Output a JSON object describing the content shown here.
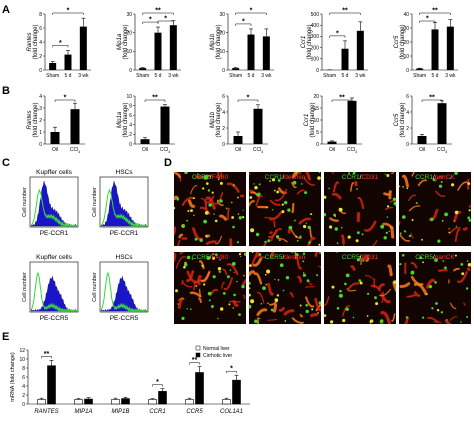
{
  "panel_labels": [
    "A",
    "B",
    "C",
    "D",
    "E"
  ],
  "panel_A": {
    "categories": [
      "Sham",
      "5 d",
      "3 wk"
    ],
    "ylabel_suffix": "(fold change)",
    "charts": [
      {
        "gene": "Rantes",
        "ylim": [
          0,
          8
        ],
        "yticks": [
          "0",
          "2",
          "4",
          "6",
          "8"
        ],
        "values": [
          1,
          2.2,
          6.2
        ],
        "errors": [
          0.2,
          0.6,
          1.2
        ],
        "sig": [
          "*",
          "*"
        ]
      },
      {
        "gene": "Mip1a",
        "ylim": [
          0,
          30
        ],
        "yticks": [
          "0",
          "10",
          "20",
          "30"
        ],
        "values": [
          1,
          20,
          24
        ],
        "errors": [
          0.3,
          3,
          2.5
        ],
        "sig": [
          "**",
          "*",
          "*"
        ]
      },
      {
        "gene": "Mip1b",
        "ylim": [
          0,
          30
        ],
        "yticks": [
          "0",
          "10",
          "20",
          "30"
        ],
        "values": [
          1,
          19,
          18
        ],
        "errors": [
          0.3,
          3,
          4
        ],
        "sig": [
          "*",
          "*"
        ]
      },
      {
        "gene": "Ccr1",
        "ylim": [
          0,
          500
        ],
        "yticks": [
          "0",
          "100",
          "200",
          "300",
          "400",
          "500"
        ],
        "values": [
          1,
          190,
          350
        ],
        "errors": [
          1,
          70,
          80
        ],
        "sig": [
          "**",
          "*"
        ]
      },
      {
        "gene": "Ccr5",
        "ylim": [
          0,
          40
        ],
        "yticks": [
          "0",
          "10",
          "20",
          "30",
          "40"
        ],
        "values": [
          1,
          29,
          31
        ],
        "errors": [
          0.3,
          5,
          5
        ],
        "sig": [
          "**",
          "*"
        ]
      }
    ]
  },
  "panel_B": {
    "categories": [
      "Oil",
      "CCl4"
    ],
    "ylabel_suffix": "(fold change)",
    "charts": [
      {
        "gene": "Rantes",
        "ylim": [
          0,
          4
        ],
        "yticks": [
          "0",
          "1",
          "2",
          "3",
          "4"
        ],
        "values": [
          1,
          2.9
        ],
        "errors": [
          0.4,
          0.5
        ],
        "sig": [
          "*"
        ]
      },
      {
        "gene": "Mip1a",
        "ylim": [
          0,
          10
        ],
        "yticks": [
          "0",
          "2",
          "4",
          "6",
          "8",
          "10"
        ],
        "values": [
          1,
          7.8
        ],
        "errors": [
          0.3,
          0.4
        ],
        "sig": [
          "**"
        ]
      },
      {
        "gene": "Mip1b",
        "ylim": [
          0,
          6
        ],
        "yticks": [
          "0",
          "2",
          "4",
          "6"
        ],
        "values": [
          1,
          4.4
        ],
        "errors": [
          0.5,
          0.5
        ],
        "sig": [
          "*"
        ]
      },
      {
        "gene": "Ccr1",
        "ylim": [
          0,
          20
        ],
        "yticks": [
          "0",
          "5",
          "10",
          "15",
          "20"
        ],
        "values": [
          1,
          18
        ],
        "errors": [
          0.3,
          1.2
        ],
        "sig": [
          "**"
        ]
      },
      {
        "gene": "Ccr5",
        "ylim": [
          0,
          6
        ],
        "yticks": [
          "0",
          "2",
          "4",
          "6"
        ],
        "values": [
          1,
          5.1
        ],
        "errors": [
          0.2,
          0.3
        ],
        "sig": [
          "**"
        ]
      }
    ]
  },
  "panel_C": {
    "ylabel": "Cell number",
    "histograms": [
      {
        "title": "Kupffer cells",
        "xlabel": "PE-CCR1"
      },
      {
        "title": "HSCs",
        "xlabel": "PE-CCR1"
      },
      {
        "title": "Kupffer cells",
        "xlabel": "PE-CCR5"
      },
      {
        "title": "HSCs",
        "xlabel": "PE-CCR5"
      }
    ]
  },
  "panel_D": {
    "row1": [
      {
        "green": "CCR1",
        "sep": "/",
        "red": "F4/80"
      },
      {
        "green": "CCR1",
        "sep": "/",
        "red": "desmin"
      },
      {
        "green": "CCR1",
        "sep": "/",
        "red": "CD31"
      },
      {
        "green": "CCR1",
        "sep": "/",
        "red": "panCK"
      }
    ],
    "row2": [
      {
        "green": "CCR5",
        "sep": "/",
        "red": "F4/80"
      },
      {
        "green": "CCR5",
        "sep": "/",
        "red": "desmin"
      },
      {
        "green": "CCR5",
        "sep": "/",
        "red": "CD31"
      },
      {
        "green": "CCR5",
        "sep": "/",
        "red": "panCK"
      }
    ]
  },
  "chart_data": {
    "type": "bar",
    "categories": [
      "RANTES",
      "MIP1A",
      "MIP1B",
      "CCR1",
      "CCR5",
      "COL1A1"
    ],
    "ylabel": "mRNA (fold change)",
    "ylim": [
      0,
      12
    ],
    "yticks": [
      "0",
      "2",
      "4",
      "6",
      "8",
      "10",
      "12"
    ],
    "series": [
      {
        "name": "Normal liver",
        "color": "#ffffff",
        "values": [
          1,
          1,
          1,
          1,
          1,
          1
        ],
        "errors": [
          0.3,
          0.2,
          0.3,
          0.2,
          0.3,
          0.3
        ]
      },
      {
        "name": "Cirrhotic liver",
        "color": "#000000",
        "values": [
          8.5,
          1.1,
          1.2,
          2.8,
          7,
          5.3
        ],
        "errors": [
          1.2,
          0.3,
          0.3,
          0.6,
          1.3,
          1.1
        ]
      }
    ],
    "significance": [
      "**",
      "",
      "",
      "*",
      "**",
      "*"
    ],
    "legend": "top-right"
  }
}
